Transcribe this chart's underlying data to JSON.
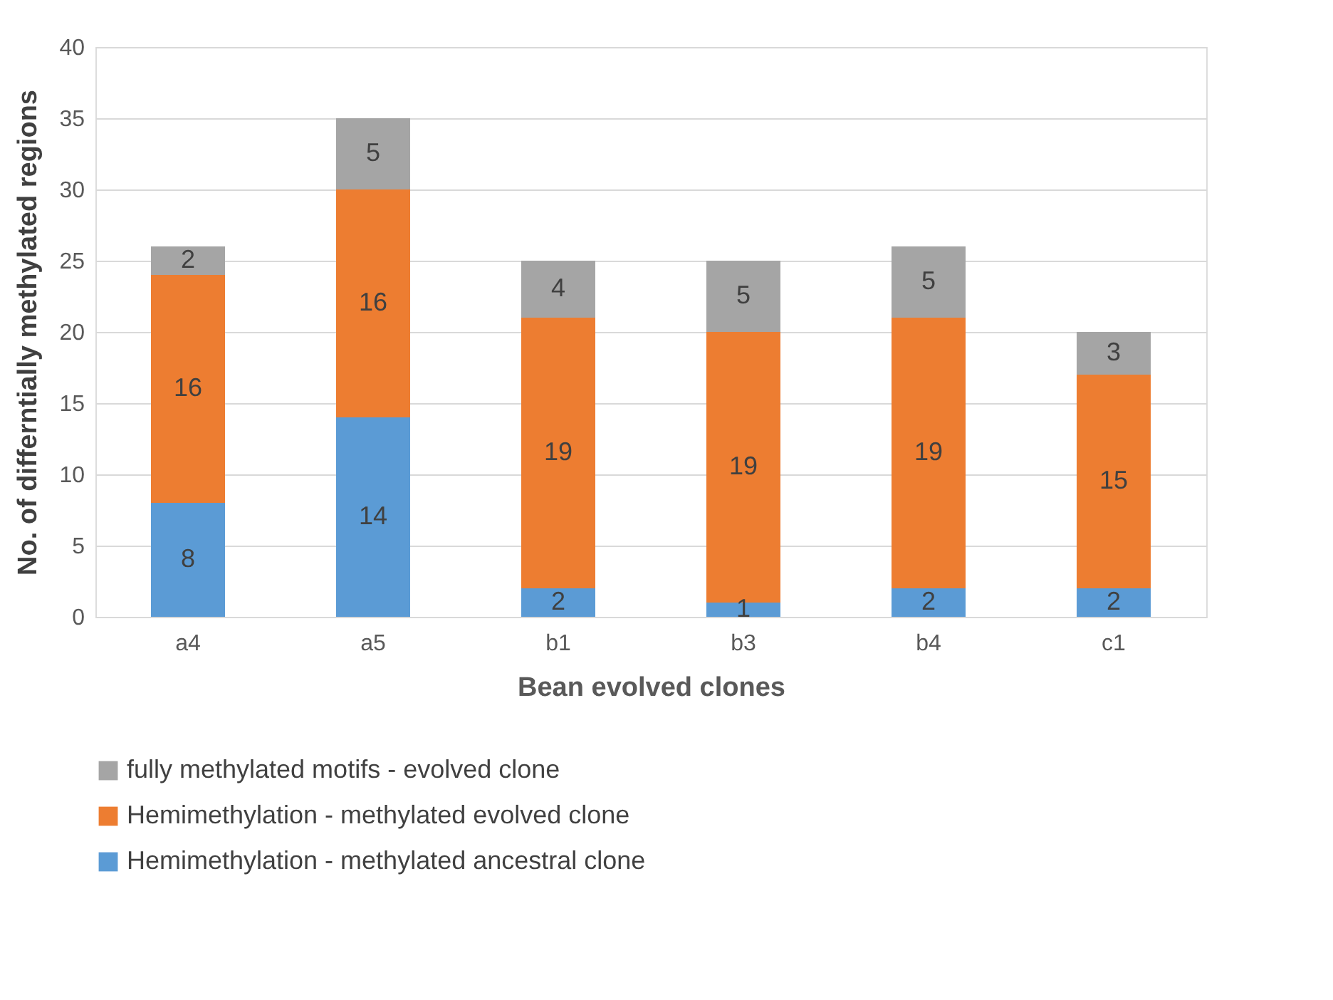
{
  "chart_data": {
    "type": "bar",
    "stacked": true,
    "xlabel": "Bean evolved clones",
    "ylabel": "No. of differntially methylated regions",
    "categories": [
      "a4",
      "a5",
      "b1",
      "b3",
      "b4",
      "c1"
    ],
    "series": [
      {
        "name": "Hemimethylation - methylated ancestral clone",
        "color": "#5b9bd5",
        "values": [
          8,
          14,
          2,
          1,
          2,
          2
        ]
      },
      {
        "name": "Hemimethylation - methylated evolved clone",
        "color": "#ed7d31",
        "values": [
          16,
          16,
          19,
          19,
          19,
          15
        ]
      },
      {
        "name": "fully methylated motifs -  evolved clone",
        "color": "#a5a5a5",
        "values": [
          2,
          5,
          4,
          5,
          5,
          3
        ]
      }
    ],
    "ylim": [
      0,
      40
    ],
    "yticks": [
      0,
      5,
      10,
      15,
      20,
      25,
      30,
      35,
      40
    ],
    "grid": "y",
    "legend": "bottom",
    "data_labels": true
  }
}
